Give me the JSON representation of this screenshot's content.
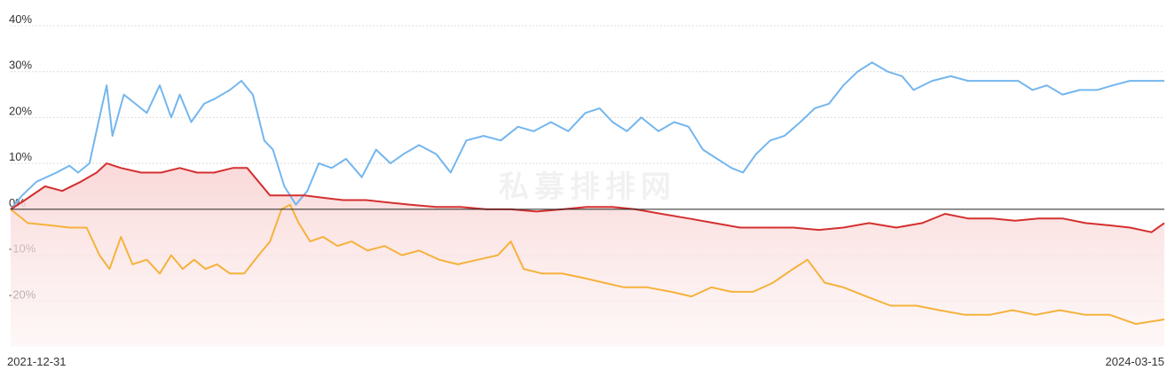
{
  "watermark": "私募排排网",
  "chart_data": {
    "type": "line",
    "title": "",
    "xlabel": "",
    "ylabel": "",
    "x_start": "2021-12-31",
    "x_end": "2024-03-15",
    "ylim": [
      -30,
      40
    ],
    "yticks": [
      -20,
      -10,
      0,
      10,
      20,
      30,
      40
    ],
    "ytick_labels": [
      "-20%",
      "-10%",
      "0%",
      "10%",
      "20%",
      "30%",
      "40%"
    ],
    "grid": true,
    "legend": "none",
    "series": [
      {
        "color": "#74b6ee",
        "points": [
          [
            "2021-12-31",
            0
          ],
          [
            "2022-01-08",
            3
          ],
          [
            "2022-01-18",
            6
          ],
          [
            "2022-02-01",
            8
          ],
          [
            "2022-02-10",
            9.5
          ],
          [
            "2022-02-16",
            8
          ],
          [
            "2022-02-24",
            10
          ],
          [
            "2022-03-03",
            20
          ],
          [
            "2022-03-08",
            27
          ],
          [
            "2022-03-12",
            16
          ],
          [
            "2022-03-20",
            25
          ],
          [
            "2022-03-28",
            23
          ],
          [
            "2022-04-05",
            21
          ],
          [
            "2022-04-14",
            27
          ],
          [
            "2022-04-22",
            20
          ],
          [
            "2022-04-28",
            25
          ],
          [
            "2022-05-06",
            19
          ],
          [
            "2022-05-15",
            23
          ],
          [
            "2022-05-22",
            24
          ],
          [
            "2022-06-02",
            26
          ],
          [
            "2022-06-10",
            28
          ],
          [
            "2022-06-18",
            25
          ],
          [
            "2022-06-26",
            15
          ],
          [
            "2022-07-02",
            13
          ],
          [
            "2022-07-10",
            5
          ],
          [
            "2022-07-18",
            1
          ],
          [
            "2022-07-26",
            4
          ],
          [
            "2022-08-03",
            10
          ],
          [
            "2022-08-12",
            9
          ],
          [
            "2022-08-22",
            11
          ],
          [
            "2022-09-02",
            7
          ],
          [
            "2022-09-12",
            13
          ],
          [
            "2022-09-22",
            10
          ],
          [
            "2022-10-01",
            12
          ],
          [
            "2022-10-12",
            14
          ],
          [
            "2022-10-24",
            12
          ],
          [
            "2022-11-03",
            8
          ],
          [
            "2022-11-14",
            15
          ],
          [
            "2022-11-26",
            16
          ],
          [
            "2022-12-08",
            15
          ],
          [
            "2022-12-20",
            18
          ],
          [
            "2022-12-31",
            17
          ],
          [
            "2023-01-12",
            19
          ],
          [
            "2023-01-24",
            17
          ],
          [
            "2023-02-05",
            21
          ],
          [
            "2023-02-15",
            22
          ],
          [
            "2023-02-24",
            19
          ],
          [
            "2023-03-06",
            17
          ],
          [
            "2023-03-16",
            20
          ],
          [
            "2023-03-28",
            17
          ],
          [
            "2023-04-08",
            19
          ],
          [
            "2023-04-18",
            18
          ],
          [
            "2023-04-28",
            13
          ],
          [
            "2023-05-08",
            11
          ],
          [
            "2023-05-18",
            9
          ],
          [
            "2023-05-26",
            8
          ],
          [
            "2023-06-04",
            12
          ],
          [
            "2023-06-14",
            15
          ],
          [
            "2023-06-24",
            16
          ],
          [
            "2023-07-05",
            19
          ],
          [
            "2023-07-15",
            22
          ],
          [
            "2023-07-25",
            23
          ],
          [
            "2023-08-04",
            27
          ],
          [
            "2023-08-14",
            30
          ],
          [
            "2023-08-24",
            32
          ],
          [
            "2023-09-04",
            30
          ],
          [
            "2023-09-14",
            29
          ],
          [
            "2023-09-22",
            26
          ],
          [
            "2023-10-05",
            28
          ],
          [
            "2023-10-18",
            29
          ],
          [
            "2023-10-30",
            28
          ],
          [
            "2023-11-10",
            28
          ],
          [
            "2023-11-22",
            28
          ],
          [
            "2023-12-04",
            28
          ],
          [
            "2023-12-14",
            26
          ],
          [
            "2023-12-24",
            27
          ],
          [
            "2024-01-04",
            25
          ],
          [
            "2024-01-16",
            26
          ],
          [
            "2024-01-28",
            26
          ],
          [
            "2024-02-08",
            27
          ],
          [
            "2024-02-20",
            28
          ],
          [
            "2024-03-01",
            28
          ],
          [
            "2024-03-15",
            28
          ]
        ]
      },
      {
        "color": "#d43030",
        "fill": "#fbe0e0",
        "points": [
          [
            "2021-12-31",
            0
          ],
          [
            "2022-01-10",
            2
          ],
          [
            "2022-01-24",
            5
          ],
          [
            "2022-02-05",
            4
          ],
          [
            "2022-02-18",
            6
          ],
          [
            "2022-03-01",
            8
          ],
          [
            "2022-03-08",
            10
          ],
          [
            "2022-03-18",
            9
          ],
          [
            "2022-04-01",
            8
          ],
          [
            "2022-04-15",
            8
          ],
          [
            "2022-04-28",
            9
          ],
          [
            "2022-05-10",
            8
          ],
          [
            "2022-05-22",
            8
          ],
          [
            "2022-06-04",
            9
          ],
          [
            "2022-06-14",
            9
          ],
          [
            "2022-06-22",
            6
          ],
          [
            "2022-06-30",
            3
          ],
          [
            "2022-07-12",
            3
          ],
          [
            "2022-07-24",
            3
          ],
          [
            "2022-08-06",
            2.5
          ],
          [
            "2022-08-20",
            2
          ],
          [
            "2022-09-05",
            2
          ],
          [
            "2022-09-20",
            1.5
          ],
          [
            "2022-10-06",
            1
          ],
          [
            "2022-10-24",
            0.5
          ],
          [
            "2022-11-10",
            0.5
          ],
          [
            "2022-11-28",
            0
          ],
          [
            "2022-12-15",
            0
          ],
          [
            "2023-01-02",
            -0.5
          ],
          [
            "2023-01-20",
            0
          ],
          [
            "2023-02-06",
            0.5
          ],
          [
            "2023-02-24",
            0.5
          ],
          [
            "2023-03-12",
            0
          ],
          [
            "2023-03-30",
            -1
          ],
          [
            "2023-04-18",
            -2
          ],
          [
            "2023-05-06",
            -3
          ],
          [
            "2023-05-24",
            -4
          ],
          [
            "2023-06-12",
            -4
          ],
          [
            "2023-06-30",
            -4
          ],
          [
            "2023-07-18",
            -4.5
          ],
          [
            "2023-08-04",
            -4
          ],
          [
            "2023-08-22",
            -3
          ],
          [
            "2023-09-10",
            -4
          ],
          [
            "2023-09-28",
            -3
          ],
          [
            "2023-10-14",
            -1
          ],
          [
            "2023-10-30",
            -2
          ],
          [
            "2023-11-16",
            -2
          ],
          [
            "2023-12-02",
            -2.5
          ],
          [
            "2023-12-18",
            -2
          ],
          [
            "2024-01-04",
            -2
          ],
          [
            "2024-01-20",
            -3
          ],
          [
            "2024-02-06",
            -3.5
          ],
          [
            "2024-02-20",
            -4
          ],
          [
            "2024-03-06",
            -5
          ],
          [
            "2024-03-15",
            -3
          ]
        ]
      },
      {
        "color": "#f5b23c",
        "points": [
          [
            "2021-12-31",
            0
          ],
          [
            "2022-01-12",
            -3
          ],
          [
            "2022-01-28",
            -3.5
          ],
          [
            "2022-02-10",
            -4
          ],
          [
            "2022-02-22",
            -4
          ],
          [
            "2022-03-03",
            -10
          ],
          [
            "2022-03-10",
            -13
          ],
          [
            "2022-03-18",
            -6
          ],
          [
            "2022-03-26",
            -12
          ],
          [
            "2022-04-05",
            -11
          ],
          [
            "2022-04-14",
            -14
          ],
          [
            "2022-04-22",
            -10
          ],
          [
            "2022-04-30",
            -13
          ],
          [
            "2022-05-08",
            -11
          ],
          [
            "2022-05-16",
            -13
          ],
          [
            "2022-05-24",
            -12
          ],
          [
            "2022-06-02",
            -14
          ],
          [
            "2022-06-12",
            -14
          ],
          [
            "2022-06-22",
            -10
          ],
          [
            "2022-06-30",
            -7
          ],
          [
            "2022-07-08",
            0
          ],
          [
            "2022-07-14",
            1
          ],
          [
            "2022-07-20",
            -3
          ],
          [
            "2022-07-28",
            -7
          ],
          [
            "2022-08-06",
            -6
          ],
          [
            "2022-08-16",
            -8
          ],
          [
            "2022-08-26",
            -7
          ],
          [
            "2022-09-06",
            -9
          ],
          [
            "2022-09-18",
            -8
          ],
          [
            "2022-09-30",
            -10
          ],
          [
            "2022-10-12",
            -9
          ],
          [
            "2022-10-26",
            -11
          ],
          [
            "2022-11-08",
            -12
          ],
          [
            "2022-11-22",
            -11
          ],
          [
            "2022-12-06",
            -10
          ],
          [
            "2022-12-15",
            -7
          ],
          [
            "2022-12-24",
            -13
          ],
          [
            "2023-01-06",
            -14
          ],
          [
            "2023-01-20",
            -14
          ],
          [
            "2023-02-04",
            -15
          ],
          [
            "2023-02-18",
            -16
          ],
          [
            "2023-03-04",
            -17
          ],
          [
            "2023-03-20",
            -17
          ],
          [
            "2023-04-06",
            -18
          ],
          [
            "2023-04-20",
            -19
          ],
          [
            "2023-05-04",
            -17
          ],
          [
            "2023-05-18",
            -18
          ],
          [
            "2023-06-02",
            -18
          ],
          [
            "2023-06-16",
            -16
          ],
          [
            "2023-06-30",
            -13
          ],
          [
            "2023-07-10",
            -11
          ],
          [
            "2023-07-22",
            -16
          ],
          [
            "2023-08-04",
            -17
          ],
          [
            "2023-08-20",
            -19
          ],
          [
            "2023-09-06",
            -21
          ],
          [
            "2023-09-24",
            -21
          ],
          [
            "2023-10-10",
            -22
          ],
          [
            "2023-10-28",
            -23
          ],
          [
            "2023-11-14",
            -23
          ],
          [
            "2023-11-30",
            -22
          ],
          [
            "2023-12-16",
            -23
          ],
          [
            "2024-01-02",
            -22
          ],
          [
            "2024-01-20",
            -23
          ],
          [
            "2024-02-06",
            -23
          ],
          [
            "2024-02-24",
            -25
          ],
          [
            "2024-03-15",
            -24
          ]
        ]
      }
    ]
  }
}
